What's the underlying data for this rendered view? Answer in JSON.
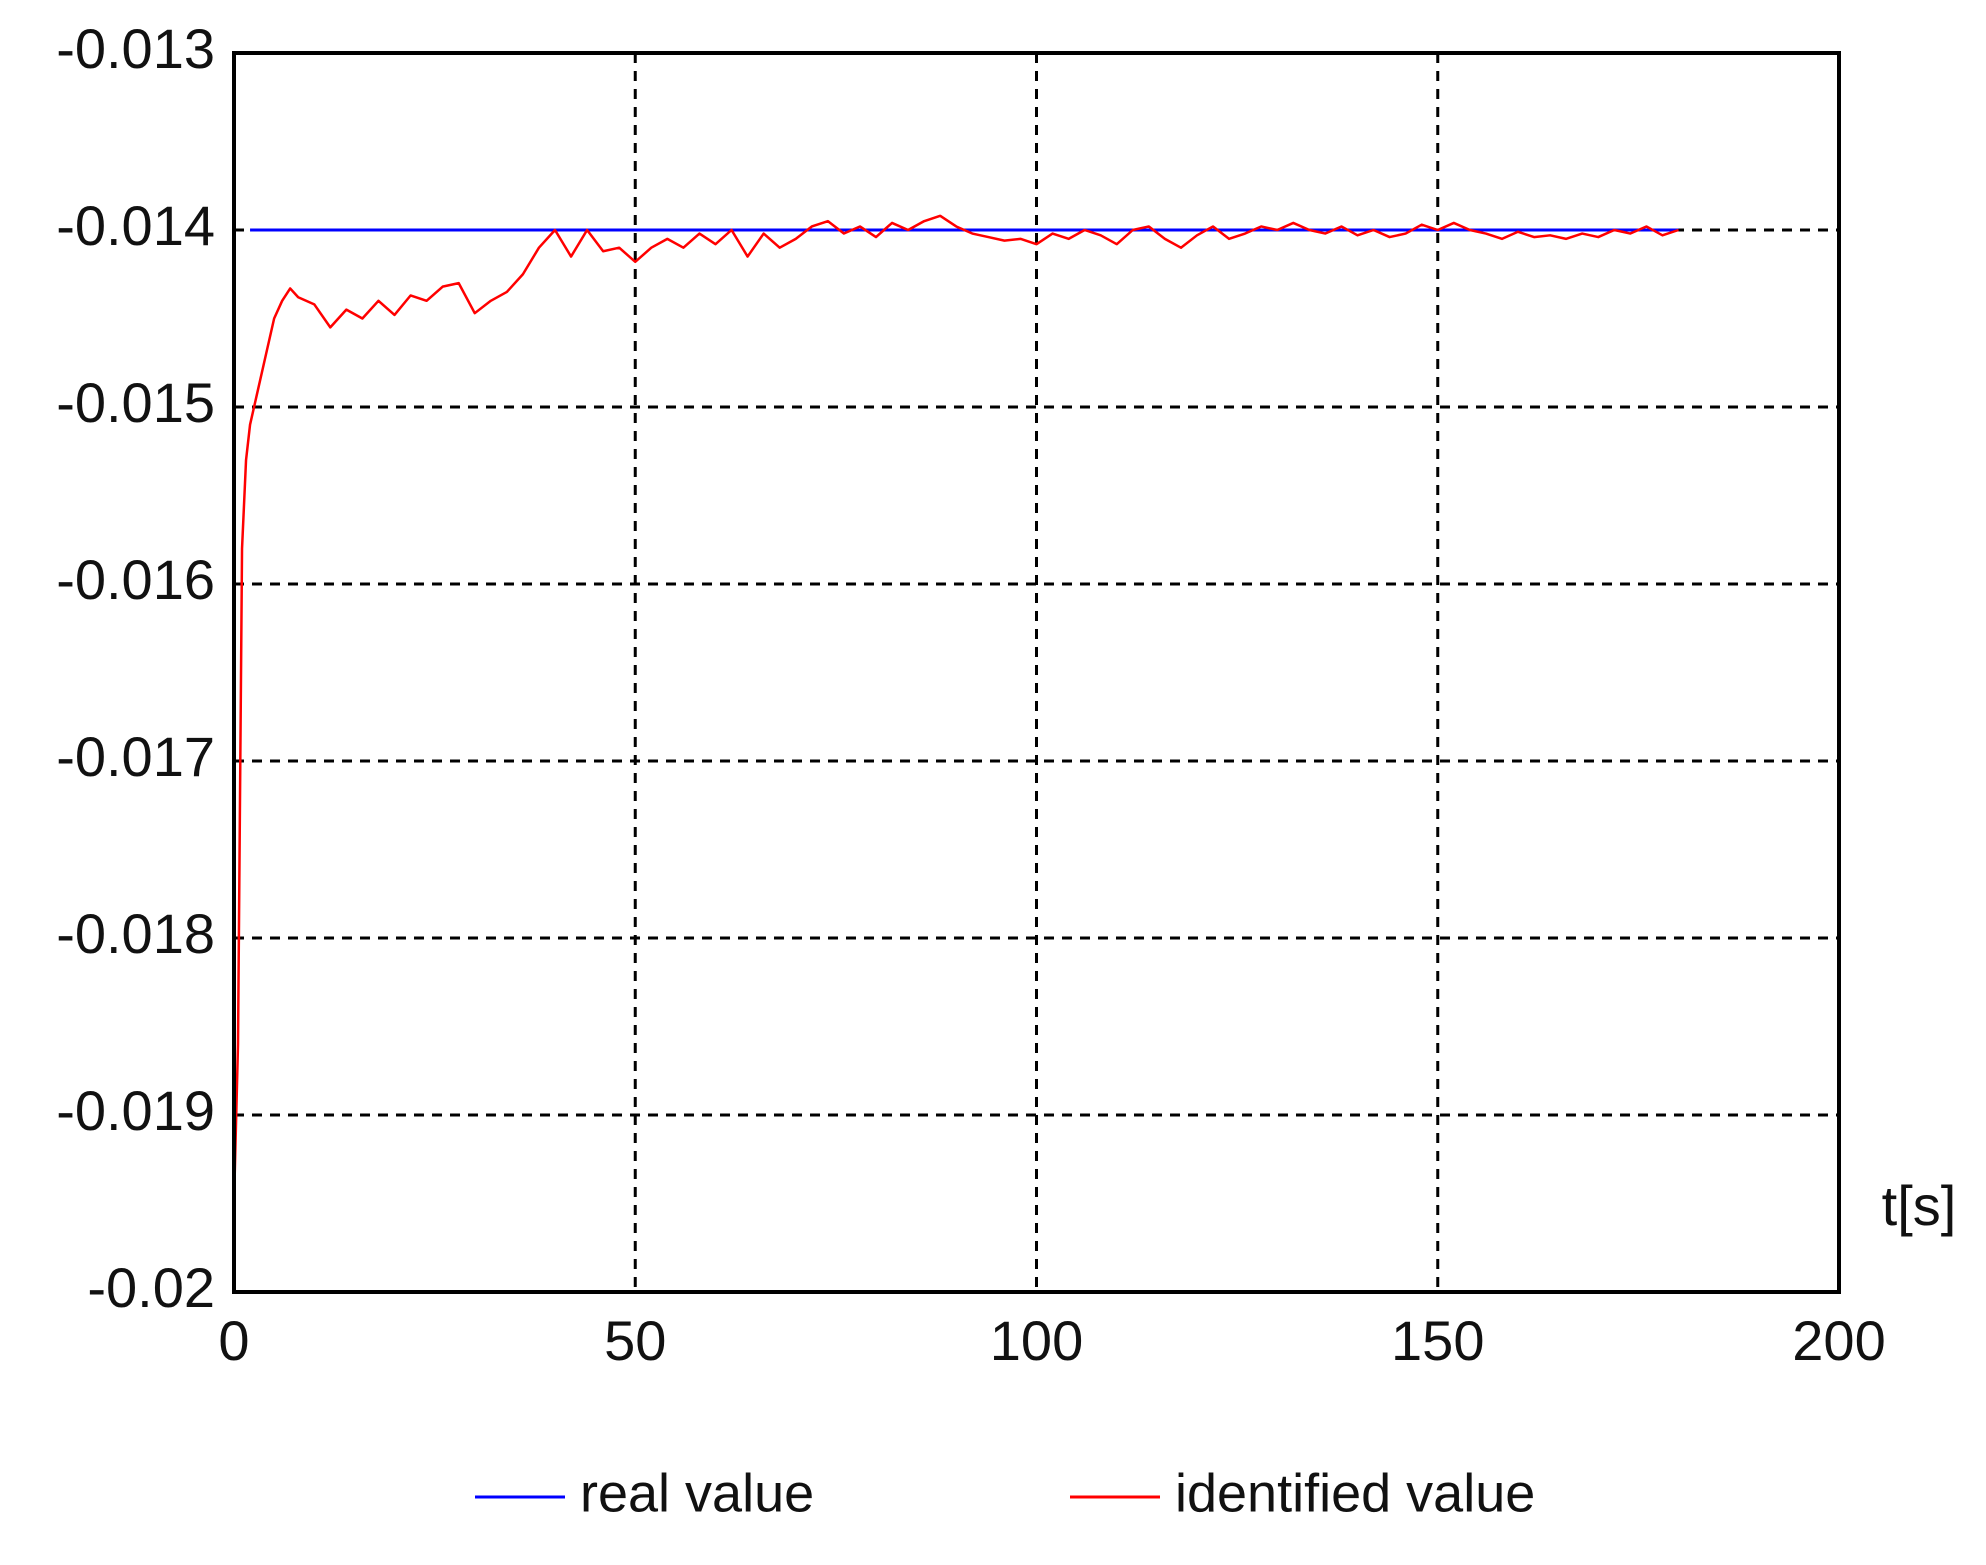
{
  "chart_data": {
    "type": "line",
    "x_label": "t[s]",
    "xlim": [
      0,
      200
    ],
    "xticks": [
      0,
      50,
      100,
      150,
      200
    ],
    "ylim": [
      -0.02,
      -0.013
    ],
    "yticks": [
      -0.013,
      -0.014,
      -0.015,
      -0.016,
      -0.017,
      -0.018,
      -0.019,
      -0.02
    ],
    "grid": true,
    "legend": "bottom",
    "series": [
      {
        "name": "real value",
        "color": "#0000ff",
        "x": [
          2,
          180
        ],
        "values": [
          -0.014,
          -0.014
        ]
      },
      {
        "name": "identified value",
        "color": "#ff0000",
        "x": [
          0,
          0.5,
          1,
          1.5,
          2,
          3,
          4,
          5,
          6,
          7,
          8,
          10,
          12,
          14,
          16,
          18,
          20,
          22,
          24,
          26,
          28,
          30,
          32,
          34,
          36,
          38,
          40,
          42,
          44,
          46,
          48,
          50,
          52,
          54,
          56,
          58,
          60,
          62,
          64,
          66,
          68,
          70,
          72,
          74,
          76,
          78,
          80,
          82,
          84,
          86,
          88,
          90,
          92,
          94,
          96,
          98,
          100,
          102,
          104,
          106,
          108,
          110,
          112,
          114,
          116,
          118,
          120,
          122,
          124,
          126,
          128,
          130,
          132,
          134,
          136,
          138,
          140,
          142,
          144,
          146,
          148,
          150,
          152,
          154,
          156,
          158,
          160,
          162,
          164,
          166,
          168,
          170,
          172,
          174,
          176,
          178,
          180
        ],
        "values": [
          -0.0195,
          -0.0186,
          -0.0158,
          -0.0153,
          -0.0151,
          -0.0149,
          -0.0147,
          -0.0145,
          -0.0144,
          -0.01433,
          -0.01438,
          -0.01442,
          -0.01455,
          -0.01445,
          -0.0145,
          -0.0144,
          -0.01448,
          -0.01437,
          -0.0144,
          -0.01432,
          -0.0143,
          -0.01447,
          -0.0144,
          -0.01435,
          -0.01425,
          -0.0141,
          -0.014,
          -0.01415,
          -0.014,
          -0.01412,
          -0.0141,
          -0.01418,
          -0.0141,
          -0.01405,
          -0.0141,
          -0.01402,
          -0.01408,
          -0.014,
          -0.01415,
          -0.01402,
          -0.0141,
          -0.01405,
          -0.01398,
          -0.01395,
          -0.01402,
          -0.01398,
          -0.01404,
          -0.01396,
          -0.014,
          -0.01395,
          -0.01392,
          -0.01398,
          -0.01402,
          -0.01404,
          -0.01406,
          -0.01405,
          -0.01408,
          -0.01402,
          -0.01405,
          -0.014,
          -0.01403,
          -0.01408,
          -0.014,
          -0.01398,
          -0.01405,
          -0.0141,
          -0.01403,
          -0.01398,
          -0.01405,
          -0.01402,
          -0.01398,
          -0.014,
          -0.01396,
          -0.014,
          -0.01402,
          -0.01398,
          -0.01403,
          -0.014,
          -0.01404,
          -0.01402,
          -0.01397,
          -0.014,
          -0.01396,
          -0.014,
          -0.01402,
          -0.01405,
          -0.01401,
          -0.01404,
          -0.01403,
          -0.01405,
          -0.01402,
          -0.01404,
          -0.014,
          -0.01402,
          -0.01398,
          -0.01403,
          -0.014
        ]
      }
    ]
  }
}
